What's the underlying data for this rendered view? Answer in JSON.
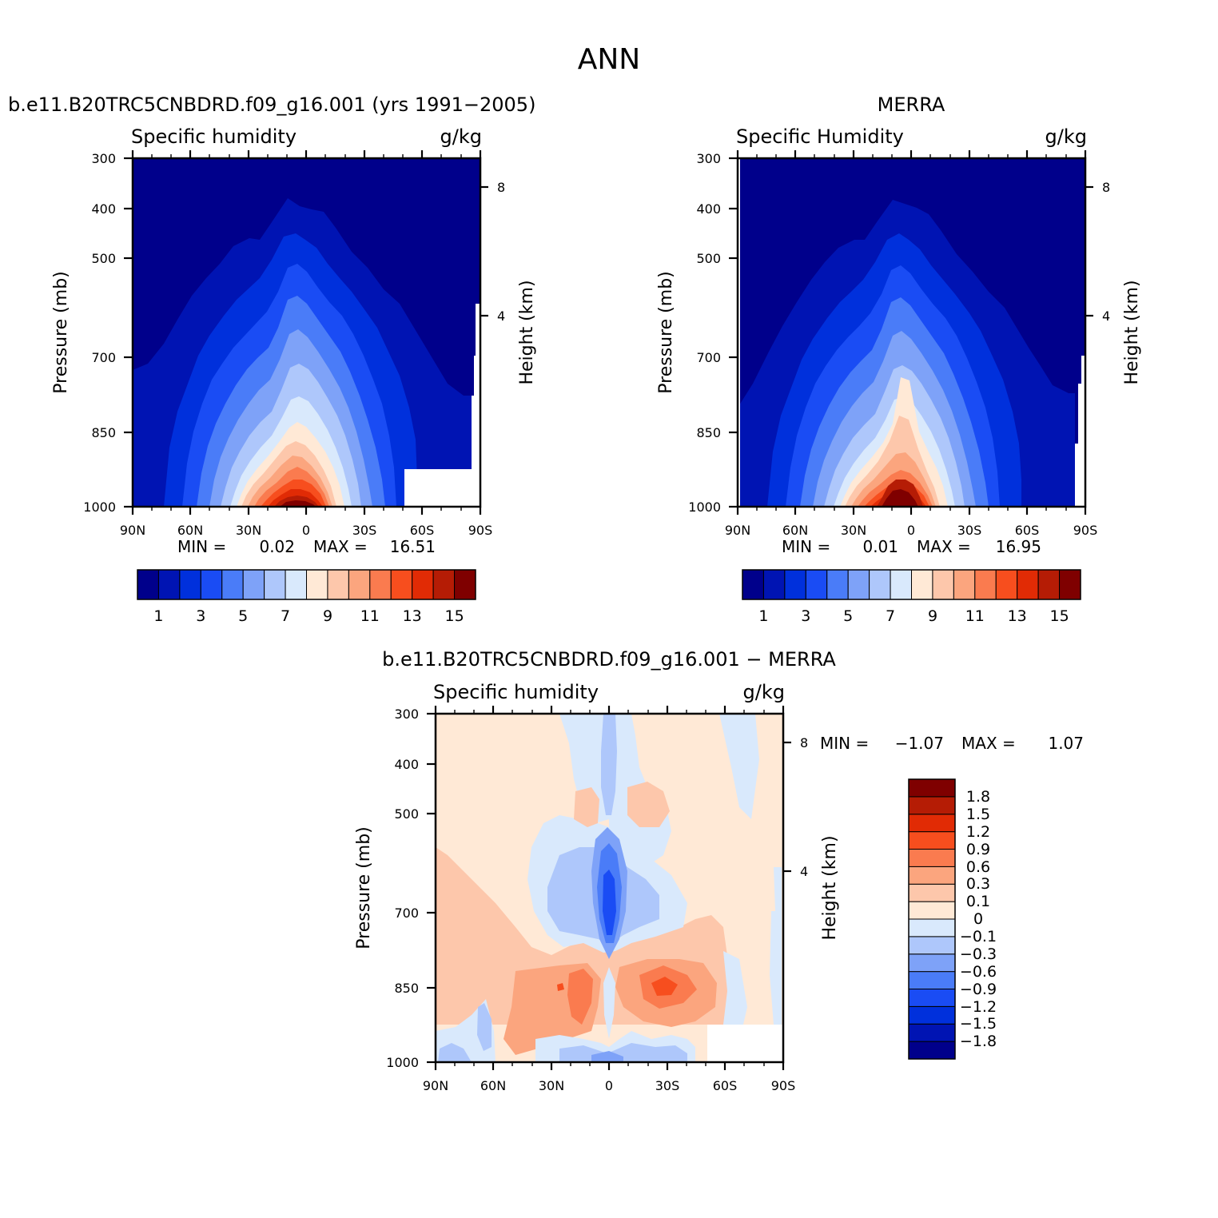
{
  "figure": {
    "title": "ANN"
  },
  "palettes": {
    "seq": [
      "#00008b",
      "#0014b3",
      "#0030dc",
      "#1a4cf4",
      "#4a7cf8",
      "#7ea2f8",
      "#aec7fb",
      "#d9e9fc",
      "#ffe9d6",
      "#fdc7ab",
      "#fba57e",
      "#fa7b4f",
      "#f74e1e",
      "#e12b05",
      "#b51c05",
      "#7f0000"
    ],
    "div": [
      "#00008b",
      "#0014b3",
      "#0030dc",
      "#1a4cf4",
      "#4a7cf8",
      "#7ea2f8",
      "#aec7fb",
      "#d9e9fc",
      "#ffe9d6",
      "#fdc7ab",
      "#fba57e",
      "#fa7b4f",
      "#f74e1e",
      "#e12b05",
      "#b51c05",
      "#7f0000"
    ]
  },
  "chart_data": [
    {
      "type": "heatmap",
      "title": "b.e11.B20TRC5CNBDRD.f09_g16.001 (yrs 1991-2005)",
      "variable": "Specific humidity",
      "units": "g/kg",
      "xlabel": "",
      "ylabel": "Pressure (mb)",
      "y2label": "Height (km)",
      "x_ticks": [
        "90N",
        "60N",
        "30N",
        "0",
        "30S",
        "60S",
        "90S"
      ],
      "y_ticks": [
        "300",
        "400",
        "500",
        "700",
        "850",
        "1000"
      ],
      "y2_ticks": [
        "8",
        "4"
      ],
      "min_label": "MIN =",
      "min_value": "0.02",
      "max_label": "MAX =",
      "max_value": "16.51",
      "colorbar_labels": [
        "1",
        "3",
        "5",
        "7",
        "9",
        "11",
        "13",
        "15"
      ]
    },
    {
      "type": "heatmap",
      "title": "MERRA",
      "variable": "Specific Humidity",
      "units": "g/kg",
      "xlabel": "",
      "ylabel": "Pressure (mb)",
      "y2label": "Height (km)",
      "x_ticks": [
        "90N",
        "60N",
        "30N",
        "0",
        "30S",
        "60S",
        "90S"
      ],
      "y_ticks": [
        "300",
        "400",
        "500",
        "700",
        "850",
        "1000"
      ],
      "y2_ticks": [
        "8",
        "4"
      ],
      "min_label": "MIN =",
      "min_value": "0.01",
      "max_label": "MAX =",
      "max_value": "16.95",
      "colorbar_labels": [
        "1",
        "3",
        "5",
        "7",
        "9",
        "11",
        "13",
        "15"
      ]
    },
    {
      "type": "heatmap",
      "title": "b.e11.B20TRC5CNBDRD.f09_g16.001 - MERRA",
      "variable": "Specific humidity",
      "units": "g/kg",
      "xlabel": "",
      "ylabel": "Pressure (mb)",
      "y2label": "Height (km)",
      "x_ticks": [
        "90N",
        "60N",
        "30N",
        "0",
        "30S",
        "60S",
        "90S"
      ],
      "y_ticks": [
        "300",
        "400",
        "500",
        "700",
        "850",
        "1000"
      ],
      "y2_ticks": [
        "8",
        "4"
      ],
      "min_label": "MIN =",
      "min_value": "-1.07",
      "max_label": "MAX =",
      "max_value": "1.07",
      "colorbar_labels": [
        "1.8",
        "1.5",
        "1.2",
        "0.9",
        "0.6",
        "0.3",
        "0.1",
        "0",
        "-0.1",
        "-0.3",
        "-0.6",
        "-0.9",
        "-1.2",
        "-1.5",
        "-1.8"
      ]
    }
  ]
}
